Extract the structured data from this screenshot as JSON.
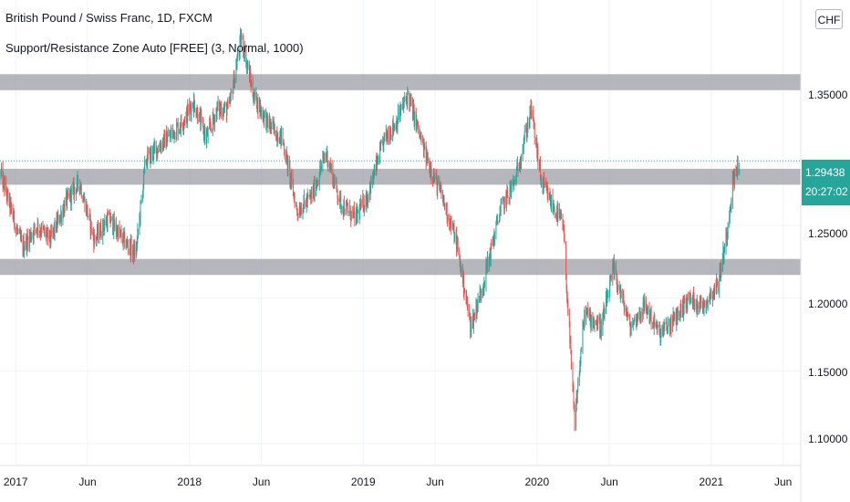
{
  "header": {
    "title": "British Pound / Swiss Franc, 1D, FXCM",
    "indicator": "Support/Resistance Zone Auto [FREE] (3, Normal, 1000)"
  },
  "price_axis": {
    "currency": "CHF",
    "tick_labels": [
      "1.35000",
      "1.25000",
      "1.20000",
      "1.15000",
      "1.10000"
    ]
  },
  "last_price": {
    "value": "1.29438",
    "countdown": "20:27:02",
    "color": "#26a69a"
  },
  "colors": {
    "up": "#26a69a",
    "down": "#ef5350",
    "zone": "#9598a1",
    "grid": "#f0f3fa"
  },
  "chart_data": {
    "type": "candlestick",
    "symbol": "GBPCHF",
    "interval": "1D",
    "x_tick_labels": [
      "2017",
      "Jun",
      "2018",
      "Jun",
      "2019",
      "Jun",
      "2020",
      "Jun",
      "2021",
      "Jun"
    ],
    "x_tick_dates": [
      "2017-01-01",
      "2017-06-01",
      "2018-01-01",
      "2018-06-01",
      "2019-01-01",
      "2019-06-01",
      "2020-01-01",
      "2020-06-01",
      "2021-01-01",
      "2021-06-01"
    ],
    "x_range": [
      "2016-11-29",
      "2021-07-08"
    ],
    "ylim": [
      1.085,
      1.405
    ],
    "support_resistance_zones": [
      {
        "low": 1.343,
        "high": 1.354
      },
      {
        "low": 1.278,
        "high": 1.289
      },
      {
        "low": 1.216,
        "high": 1.227
      }
    ],
    "last_price": 1.29438,
    "close_path": [
      [
        "2016-12-01",
        1.285
      ],
      [
        "2017-01-01",
        1.25
      ],
      [
        "2017-01-15",
        1.235
      ],
      [
        "2017-02-15",
        1.25
      ],
      [
        "2017-03-15",
        1.24
      ],
      [
        "2017-04-15",
        1.265
      ],
      [
        "2017-05-15",
        1.28
      ],
      [
        "2017-06-15",
        1.24
      ],
      [
        "2017-07-15",
        1.255
      ],
      [
        "2017-08-15",
        1.24
      ],
      [
        "2017-09-10",
        1.23
      ],
      [
        "2017-10-01",
        1.295
      ],
      [
        "2017-11-15",
        1.31
      ],
      [
        "2017-12-15",
        1.32
      ],
      [
        "2018-01-10",
        1.335
      ],
      [
        "2018-02-05",
        1.31
      ],
      [
        "2018-03-01",
        1.33
      ],
      [
        "2018-03-25",
        1.33
      ],
      [
        "2018-04-20",
        1.38
      ],
      [
        "2018-05-15",
        1.34
      ],
      [
        "2018-06-15",
        1.32
      ],
      [
        "2018-07-15",
        1.31
      ],
      [
        "2018-08-15",
        1.26
      ],
      [
        "2018-09-15",
        1.27
      ],
      [
        "2018-10-15",
        1.3
      ],
      [
        "2018-11-15",
        1.265
      ],
      [
        "2018-12-15",
        1.255
      ],
      [
        "2019-01-10",
        1.27
      ],
      [
        "2019-02-15",
        1.31
      ],
      [
        "2019-03-10",
        1.32
      ],
      [
        "2019-04-05",
        1.34
      ],
      [
        "2019-05-10",
        1.3
      ],
      [
        "2019-06-15",
        1.27
      ],
      [
        "2019-07-15",
        1.24
      ],
      [
        "2019-08-15",
        1.18
      ],
      [
        "2019-09-10",
        1.21
      ],
      [
        "2019-10-15",
        1.26
      ],
      [
        "2019-11-15",
        1.28
      ],
      [
        "2019-12-20",
        1.33
      ],
      [
        "2020-01-10",
        1.28
      ],
      [
        "2020-02-01",
        1.265
      ],
      [
        "2020-02-25",
        1.25
      ],
      [
        "2020-03-10",
        1.17
      ],
      [
        "2020-03-20",
        1.115
      ],
      [
        "2020-04-10",
        1.19
      ],
      [
        "2020-05-15",
        1.18
      ],
      [
        "2020-06-10",
        1.22
      ],
      [
        "2020-07-15",
        1.18
      ],
      [
        "2020-08-15",
        1.195
      ],
      [
        "2020-09-15",
        1.175
      ],
      [
        "2020-10-15",
        1.185
      ],
      [
        "2020-11-15",
        1.2
      ],
      [
        "2020-12-15",
        1.195
      ],
      [
        "2021-01-15",
        1.21
      ],
      [
        "2021-02-01",
        1.24
      ],
      [
        "2021-02-15",
        1.28
      ],
      [
        "2021-03-01",
        1.294
      ]
    ]
  }
}
